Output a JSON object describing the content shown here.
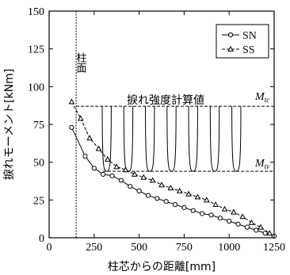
{
  "chart_data": {
    "type": "line",
    "xlabel": "柱芯からの距離[mm]",
    "ylabel": "捩れモーメント[kNm]",
    "xlim": [
      0,
      1250
    ],
    "ylim": [
      0,
      150
    ],
    "xticks": [
      0,
      250,
      500,
      750,
      1000,
      1250
    ],
    "yticks": [
      0,
      25,
      50,
      75,
      100,
      125,
      150
    ],
    "legend_position": "top-right",
    "series": [
      {
        "name": "SN",
        "marker": "circle",
        "x": [
          125,
          200,
          250,
          300,
          350,
          400,
          450,
          500,
          550,
          600,
          650,
          700,
          750,
          800,
          850,
          900,
          950,
          1000,
          1050,
          1100,
          1150,
          1200,
          1250
        ],
        "y": [
          73,
          54,
          46,
          42,
          41,
          38,
          34,
          31,
          28,
          26,
          24,
          22,
          20,
          18,
          16,
          15,
          13,
          11,
          9,
          7,
          5,
          3,
          1
        ]
      },
      {
        "name": "SS",
        "marker": "triangle",
        "x": [
          125,
          175,
          225,
          275,
          325,
          375,
          425,
          475,
          525,
          575,
          625,
          675,
          725,
          775,
          825,
          875,
          925,
          975,
          1025,
          1075,
          1125,
          1175,
          1225
        ],
        "y": [
          90,
          79,
          66,
          59,
          52,
          47,
          45,
          42,
          40,
          38,
          35,
          33,
          31,
          29,
          27,
          25,
          22,
          19,
          17,
          14,
          10,
          7,
          3
        ]
      }
    ],
    "reference_lines": [
      {
        "label": "M",
        "subscript": "tc",
        "y": 87
      },
      {
        "label": "M",
        "subscript": "tv",
        "y": 44
      }
    ],
    "annotations": {
      "column_label": "柱面",
      "column_x": 150,
      "strength_label": "捩れ強度計算値",
      "envelope_lobes_x": [
        320,
        440,
        560,
        680,
        800,
        920,
        1040
      ]
    }
  }
}
